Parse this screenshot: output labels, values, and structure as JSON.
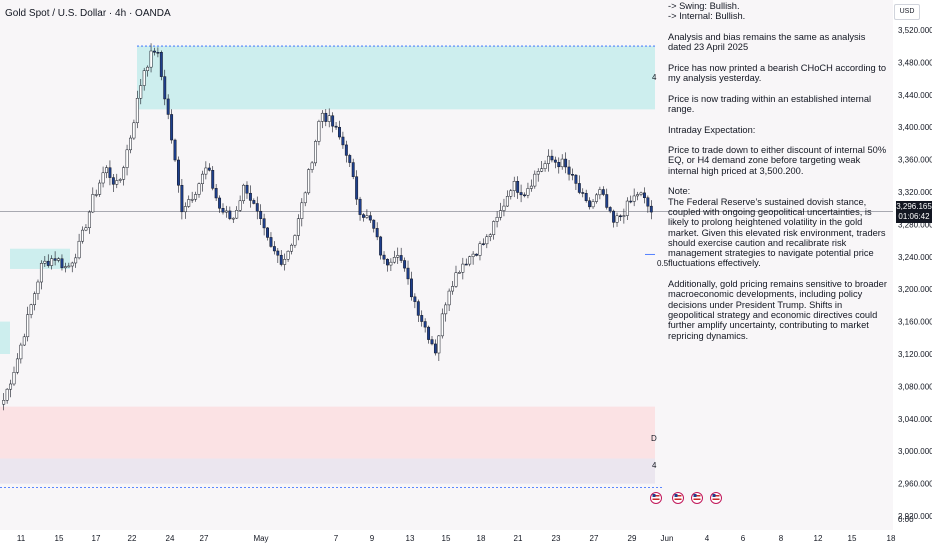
{
  "header": {
    "title": "Gold Spot / U.S. Dollar · 4h · OANDA"
  },
  "axis": {
    "currency_button": "USD",
    "bottom_right_value": "0.00"
  },
  "price_tag": {
    "price": "3,296.165",
    "countdown": "01:06:42"
  },
  "zones": {
    "fib_label": "0.5",
    "label_upper": "4",
    "label_mid": "D",
    "label_lower": "4"
  },
  "colors": {
    "up": "#ffffff",
    "down": "#1e3f8c",
    "supply": "#cdeeee",
    "demand_red": "#fbe2e4",
    "demand_grey": "#ebe6ef",
    "plot_bg": "#f8f6f8",
    "dashed": "#2962ff"
  },
  "note": {
    "lines": [
      "-> Swing:  Bullish.\n-> Internal:  Bullish.",
      "Analysis and bias remains the same as analysis dated 23 April 2025",
      "Price has now printed a bearish CHoCH according to my analysis yesterday.",
      "Price is now trading within an established internal range.",
      "Intraday Expectation:",
      "Price to trade down to either discount of internal 50% EQ, or H4 demand zone before targeting weak internal high priced at 3,500.200.",
      "Note:\nThe Federal Reserve’s sustained dovish stance, coupled with ongoing geopolitical uncertainties, is likely to prolong heightened volatility in the gold market. Given this elevated risk environment, traders should exercise caution and recalibrate risk management strategies to navigate potential price fluctuations effectively.",
      "Additionally, gold pricing remains sensitive to broader macroeconomic developments, including policy decisions under President Trump. Shifts in geopolitical strategy and economic directives could further amplify uncertainty, contributing to market repricing dynamics."
    ]
  },
  "chart_data": {
    "type": "candlestick",
    "title": "Gold Spot / U.S. Dollar · 4h · OANDA",
    "y_axis": {
      "ticks": [
        3520,
        3480,
        3440,
        3400,
        3360,
        3320,
        3280,
        3240,
        3200,
        3160,
        3120,
        3080,
        3040,
        3000,
        2960,
        2920
      ],
      "tick_labels": [
        "3,520.000",
        "3,480.000",
        "3,440.000",
        "3,400.000",
        "3,360.000",
        "3,320.000",
        "3,280.000",
        "3,240.000",
        "3,200.000",
        "3,160.000",
        "3,120.000",
        "3,080.000",
        "3,040.000",
        "3,000.000",
        "2,960.000",
        "2,920.000"
      ],
      "range": [
        2915,
        3535
      ]
    },
    "x_axis": {
      "tick_labels": [
        "11",
        "15",
        "17",
        "22",
        "24",
        "27",
        "May",
        "7",
        "9",
        "13",
        "15",
        "18",
        "21",
        "23",
        "27",
        "29",
        "Jun",
        "4",
        "6",
        "8",
        "12",
        "15",
        "18"
      ]
    },
    "current_price": 3296.165,
    "zones": [
      {
        "name": "supply",
        "from": 3422,
        "to": 3500.2
      },
      {
        "name": "demand_red",
        "from": 2991,
        "to": 3055
      },
      {
        "name": "demand_grey",
        "from": 2960,
        "to": 2991
      }
    ],
    "dashed_levels": [
      3500.2,
      2955
    ],
    "fib_50": 3243,
    "anchor_prices": [
      3063,
      3110,
      3170,
      3230,
      3240,
      3225,
      3255,
      3310,
      3350,
      3325,
      3390,
      3470,
      3500,
      3410,
      3300,
      3320,
      3350,
      3300,
      3285,
      3330,
      3290,
      3250,
      3235,
      3270,
      3340,
      3420,
      3400,
      3370,
      3300,
      3280,
      3230,
      3250,
      3200,
      3160,
      3125,
      3200,
      3230,
      3245,
      3260,
      3290,
      3330,
      3320,
      3345,
      3360,
      3355,
      3330,
      3300,
      3320,
      3280,
      3300,
      3320,
      3296
    ]
  }
}
